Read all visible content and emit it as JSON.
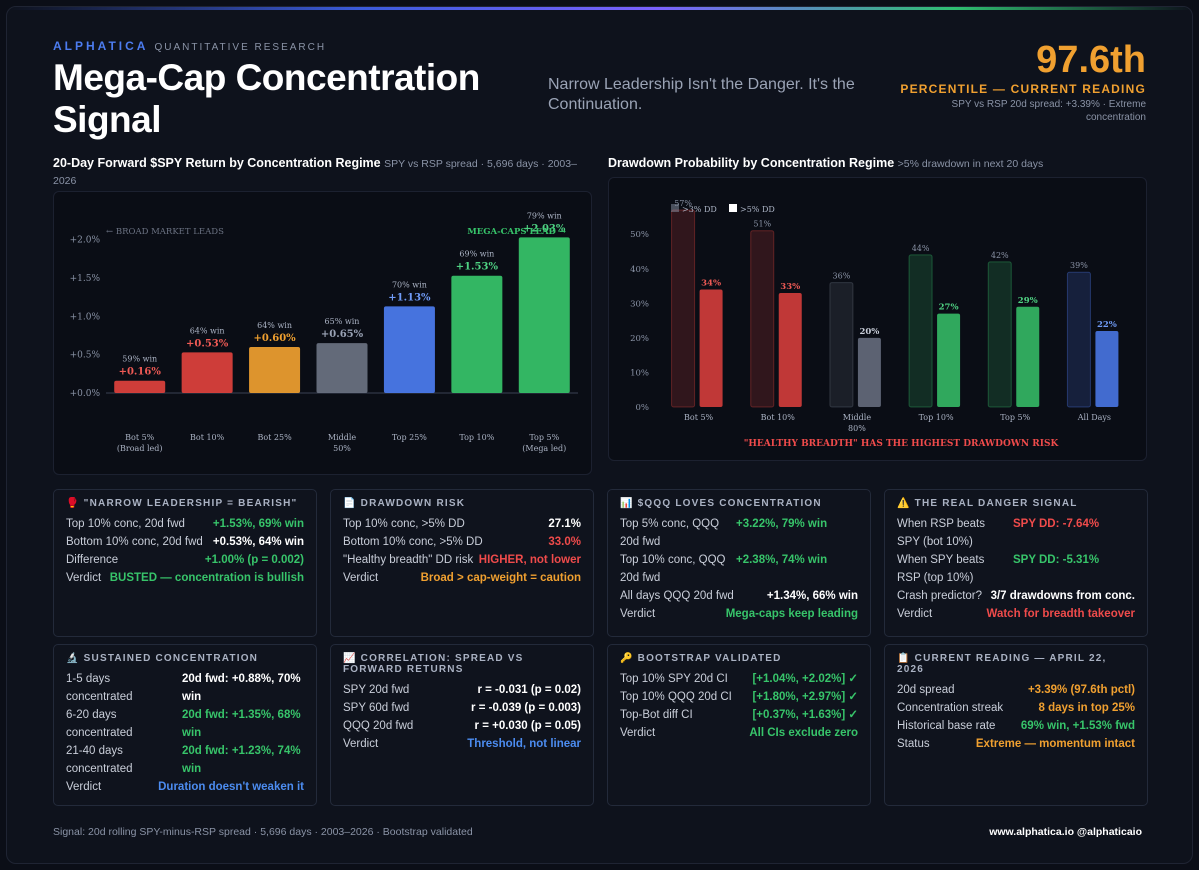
{
  "header": {
    "brand": "ALPHATICA",
    "brand_sub": "QUANTITATIVE RESEARCH",
    "title": "Mega-Cap Concentration Signal",
    "subtitle": "Narrow Leadership Isn't the Danger. It's the Continuation.",
    "percentile_value": "97.6th",
    "percentile_label": "PERCENTILE — CURRENT READING",
    "percentile_note": "SPY vs RSP 20d spread: +3.39% · Extreme concentration"
  },
  "chart_data": [
    {
      "type": "bar",
      "title": "20-Day Forward $SPY Return by Concentration Regime",
      "subtitle": "SPY vs RSP spread · 5,696 days · 2003–2026",
      "categories": [
        [
          "Bot 5%",
          "(Broad led)"
        ],
        [
          "Bot 10%"
        ],
        [
          "Bot 25%"
        ],
        [
          "Middle",
          "50%"
        ],
        [
          "Top 25%"
        ],
        [
          "Top 10%"
        ],
        [
          "Top 5%",
          "(Mega led)"
        ]
      ],
      "values": [
        0.16,
        0.53,
        0.6,
        0.65,
        1.13,
        1.53,
        2.03
      ],
      "value_labels": [
        "+0.16%",
        "+0.53%",
        "+0.60%",
        "+0.65%",
        "+1.13%",
        "+1.53%",
        "+2.03%"
      ],
      "win_labels": [
        "59% win",
        "64% win",
        "64% win",
        "65% win",
        "70% win",
        "69% win",
        "79% win"
      ],
      "colors": [
        "#e0413d",
        "#e0413d",
        "#f0a030",
        "#6b7282",
        "#4c7cf0",
        "#37c46a",
        "#37c46a"
      ],
      "yticks": [
        "+0.0%",
        "+0.5%",
        "+1.0%",
        "+1.5%",
        "+2.0%"
      ],
      "ylim": [
        0,
        2.1
      ],
      "annotation_left": "← BROAD MARKET LEADS",
      "annotation_right": "MEGA-CAPS LEAD →"
    },
    {
      "type": "bar",
      "title": "Drawdown Probability by Concentration Regime",
      "subtitle": ">5% drawdown in next 20 days",
      "categories": [
        [
          "Bot 5%"
        ],
        [
          "Bot 10%"
        ],
        [
          "Middle",
          "80%"
        ],
        [
          "Top 10%"
        ],
        [
          "Top 5%"
        ],
        [
          "All Days"
        ]
      ],
      "series": [
        {
          "name": ">3% DD",
          "values": [
            57,
            51,
            36,
            44,
            42,
            39
          ],
          "labels": [
            "57%",
            "51%",
            "36%",
            "44%",
            "42%",
            "39%"
          ]
        },
        {
          "name": ">5% DD",
          "values": [
            34,
            33,
            20,
            27,
            29,
            22
          ],
          "labels": [
            "34%",
            "33%",
            "20%",
            "27%",
            "29%",
            "22%"
          ]
        }
      ],
      "colors": [
        "#e0413d",
        "#e0413d",
        "#6b7282",
        "#37c46a",
        "#37c46a",
        "#4c7cf0"
      ],
      "yticks": [
        "0%",
        "10%",
        "20%",
        "30%",
        "40%",
        "50%"
      ],
      "ylim": [
        0,
        57
      ],
      "annotation": "\"HEALTHY BREADTH\" HAS THE HIGHEST DRAWDOWN RISK"
    }
  ],
  "cards": [
    {
      "icon": "🥊",
      "title": "\"NARROW LEADERSHIP = BEARISH\"",
      "layout": "row",
      "rows": [
        {
          "k": "Top 10% conc, 20d fwd",
          "v": "+1.53%, 69% win",
          "c": "g"
        },
        {
          "k": "Bottom 10% conc, 20d fwd",
          "v": "+0.53%, 64% win",
          "c": "w"
        },
        {
          "k": "Difference",
          "v": "+1.00% (p = 0.002)",
          "c": "g"
        },
        {
          "k": "Verdict",
          "v": "BUSTED — concentration is bullish",
          "c": "g"
        }
      ]
    },
    {
      "icon": "📄",
      "title": "DRAWDOWN RISK",
      "layout": "row",
      "rows": [
        {
          "k": "Top 10% conc, >5% DD",
          "v": "27.1%",
          "c": "w"
        },
        {
          "k": "Bottom 10% conc, >5% DD",
          "v": "33.0%",
          "c": "r"
        },
        {
          "k": "\"Healthy breadth\" DD risk",
          "v": "HIGHER, not lower",
          "c": "r"
        },
        {
          "k": "Verdict",
          "v": "Broad > cap-weight = caution",
          "c": "o"
        }
      ]
    },
    {
      "icon": "📊",
      "title": "$QQQ LOVES CONCENTRATION",
      "layout": "wrap",
      "rows": [
        {
          "k": "Top 5% conc, QQQ 20d fwd",
          "v": "+3.22%, 79% win",
          "c": "g"
        },
        {
          "k": "Top 10% conc, QQQ 20d fwd",
          "v": "+2.38%, 74% win",
          "c": "g"
        },
        {
          "k": "All days QQQ 20d fwd",
          "v": "+1.34%, 66% win",
          "c": "w",
          "full": true
        },
        {
          "k": "Verdict",
          "v": "Mega-caps keep leading",
          "c": "g",
          "full": true
        }
      ]
    },
    {
      "icon": "⚠️",
      "title": "THE REAL DANGER SIGNAL",
      "layout": "wrap",
      "rows": [
        {
          "k": "When RSP beats SPY (bot 10%)",
          "v": "SPY DD: -7.64%",
          "c": "r"
        },
        {
          "k": "When SPY beats RSP (top 10%)",
          "v": "SPY DD: -5.31%",
          "c": "g"
        },
        {
          "k": "Crash predictor?",
          "v": "3/7 drawdowns from conc.",
          "c": "w",
          "full": true
        },
        {
          "k": "Verdict",
          "v": "Watch for breadth takeover",
          "c": "r",
          "full": true
        }
      ]
    },
    {
      "icon": "🔬",
      "title": "SUSTAINED CONCENTRATION",
      "layout": "wrap",
      "rows": [
        {
          "k": "1-5 days concentrated",
          "v": "20d fwd: +0.88%, 70% win",
          "c": "w"
        },
        {
          "k": "6-20 days concentrated",
          "v": "20d fwd: +1.35%, 68% win",
          "c": "g"
        },
        {
          "k": "21-40 days concentrated",
          "v": "20d fwd: +1.23%, 74% win",
          "c": "g"
        },
        {
          "k": "Verdict",
          "v": "Duration doesn't weaken it",
          "c": "b",
          "full": true
        }
      ]
    },
    {
      "icon": "📈",
      "title": "CORRELATION: SPREAD VS FORWARD RETURNS",
      "layout": "row",
      "rows": [
        {
          "k": "SPY 20d fwd",
          "v": "r = -0.031 (p = 0.02)",
          "c": "w"
        },
        {
          "k": "SPY 60d fwd",
          "v": "r = -0.039 (p = 0.003)",
          "c": "w"
        },
        {
          "k": "QQQ 20d fwd",
          "v": "r = +0.030 (p = 0.05)",
          "c": "w"
        },
        {
          "k": "Verdict",
          "v": "Threshold, not linear",
          "c": "b"
        }
      ]
    },
    {
      "icon": "🔑",
      "title": "BOOTSTRAP VALIDATED",
      "layout": "row",
      "rows": [
        {
          "k": "Top 10% SPY 20d CI",
          "v": "[+1.04%, +2.02%] ✓",
          "c": "g"
        },
        {
          "k": "Top 10% QQQ 20d CI",
          "v": "[+1.80%, +2.97%] ✓",
          "c": "g"
        },
        {
          "k": "Top-Bot diff CI",
          "v": "[+0.37%, +1.63%] ✓",
          "c": "g"
        },
        {
          "k": "Verdict",
          "v": "All CIs exclude zero",
          "c": "g"
        }
      ]
    },
    {
      "icon": "📋",
      "title": "CURRENT READING — APRIL 22, 2026",
      "layout": "row",
      "rows": [
        {
          "k": "20d spread",
          "v": "+3.39% (97.6th pctl)",
          "c": "o"
        },
        {
          "k": "Concentration streak",
          "v": "8 days in top 25%",
          "c": "o"
        },
        {
          "k": "Historical base rate",
          "v": "69% win, +1.53% fwd",
          "c": "g"
        },
        {
          "k": "Status",
          "v": "Extreme — momentum intact",
          "c": "o"
        }
      ]
    }
  ],
  "footer": {
    "left": "Signal: 20d rolling SPY-minus-RSP spread · 5,696 days · 2003–2026 · Bootstrap validated",
    "right": "www.alphatica.io   @alphaticaio"
  }
}
